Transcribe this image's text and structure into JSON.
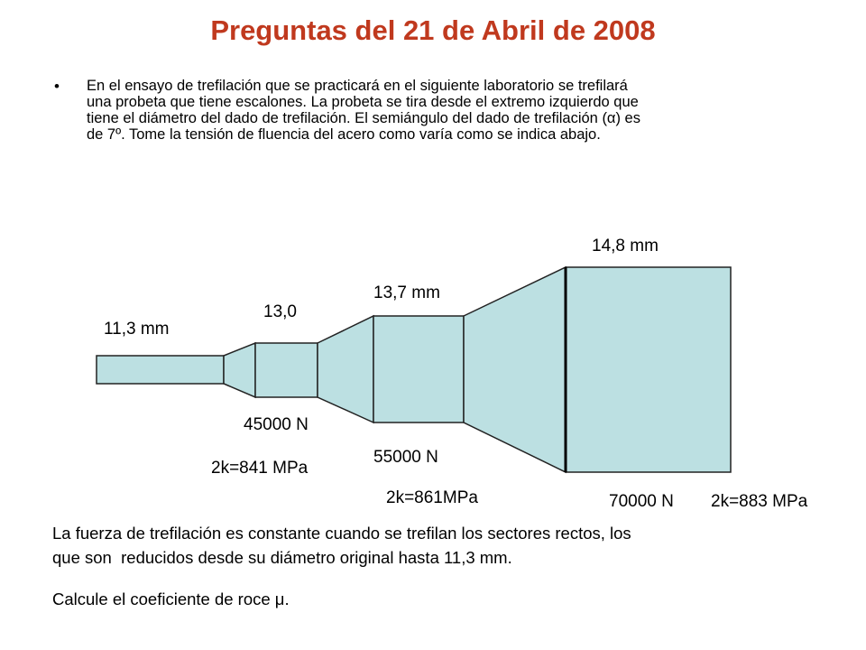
{
  "header": {
    "title": "Preguntas del 21 de Abril de 2008"
  },
  "question": {
    "lines": [
      "En el ensayo de trefilación que se practicará en el siguiente laboratorio se trefilará",
      "una probeta que tiene escalones. La probeta se tira desde el extremo izquierdo que",
      "tiene el diámetro del dado de trefilación. El semiángulo del dado de trefilación (α) es",
      "de 7º. Tome la tensión de fluencia del acero como varía como se indica abajo."
    ]
  },
  "diagram": {
    "labels": {
      "d1": "11,3 mm",
      "d2": "13,0",
      "d3": "13,7 mm",
      "d4": "14,8 mm",
      "f1": "45000 N",
      "k1": "2k=841 MPa",
      "f2": "55000 N",
      "k2": "2k=861MPa",
      "f3": "70000 N",
      "k3": "2k=883 MPa"
    }
  },
  "notes": {
    "lines": [
      "La fuerza de trefilación es constante cuando se trefilan los sectores rectos, los",
      "que son  reducidos desde su diámetro original hasta 11,3 mm."
    ],
    "task": "Calcule el coeficiente de roce μ."
  }
}
